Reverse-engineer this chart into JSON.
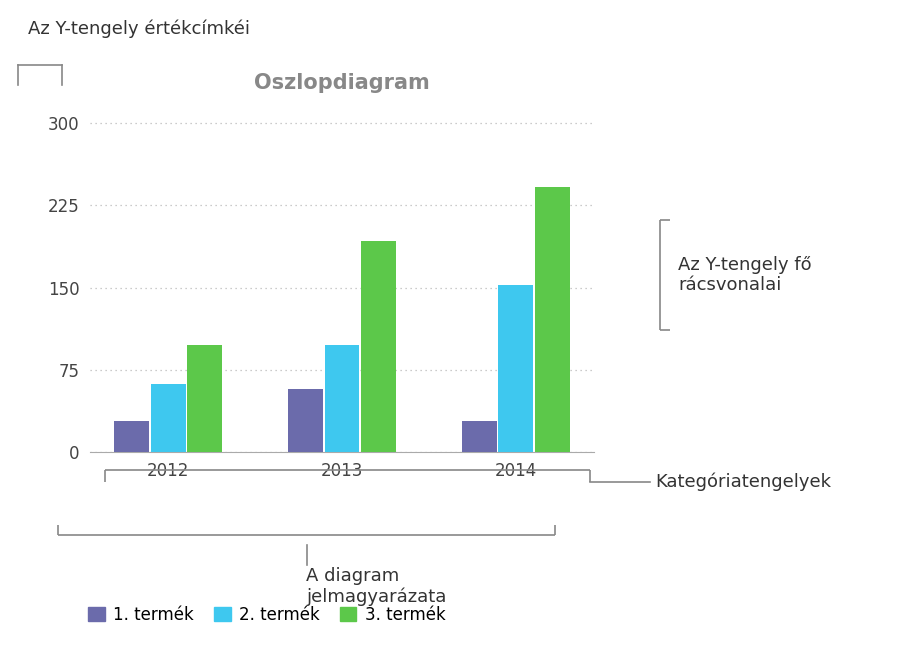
{
  "title": "Oszlopdiagram",
  "categories": [
    "2012",
    "2013",
    "2014"
  ],
  "series": [
    {
      "name": "1. termék",
      "color": "#6b6bab",
      "values": [
        28,
        58,
        28
      ]
    },
    {
      "name": "2. termék",
      "color": "#3ec8ef",
      "values": [
        62,
        98,
        152
      ]
    },
    {
      "name": "3. termék",
      "color": "#5cc84a",
      "values": [
        98,
        192,
        242
      ]
    }
  ],
  "yticks": [
    0,
    75,
    150,
    225,
    300
  ],
  "ylim": [
    0,
    315
  ],
  "grid_color": "#bbbbbb",
  "bar_width": 0.2,
  "background_color": "#ffffff",
  "title_color": "#888888",
  "title_fontsize": 15,
  "tick_fontsize": 12,
  "legend_fontsize": 12,
  "annotation_fontsize": 13,
  "annotation_color": "#333333",
  "bracket_color": "#888888",
  "spine_color": "#aaaaaa",
  "y_label_annotation": "Az Y-tengely értékcímkéi",
  "y_gridline_annotation": "Az Y-tengely fő\nrácsvonalai",
  "x_axis_annotation": "Kategóriatengelyek",
  "legend_annotation": "A diagram\njelmagyarázata"
}
